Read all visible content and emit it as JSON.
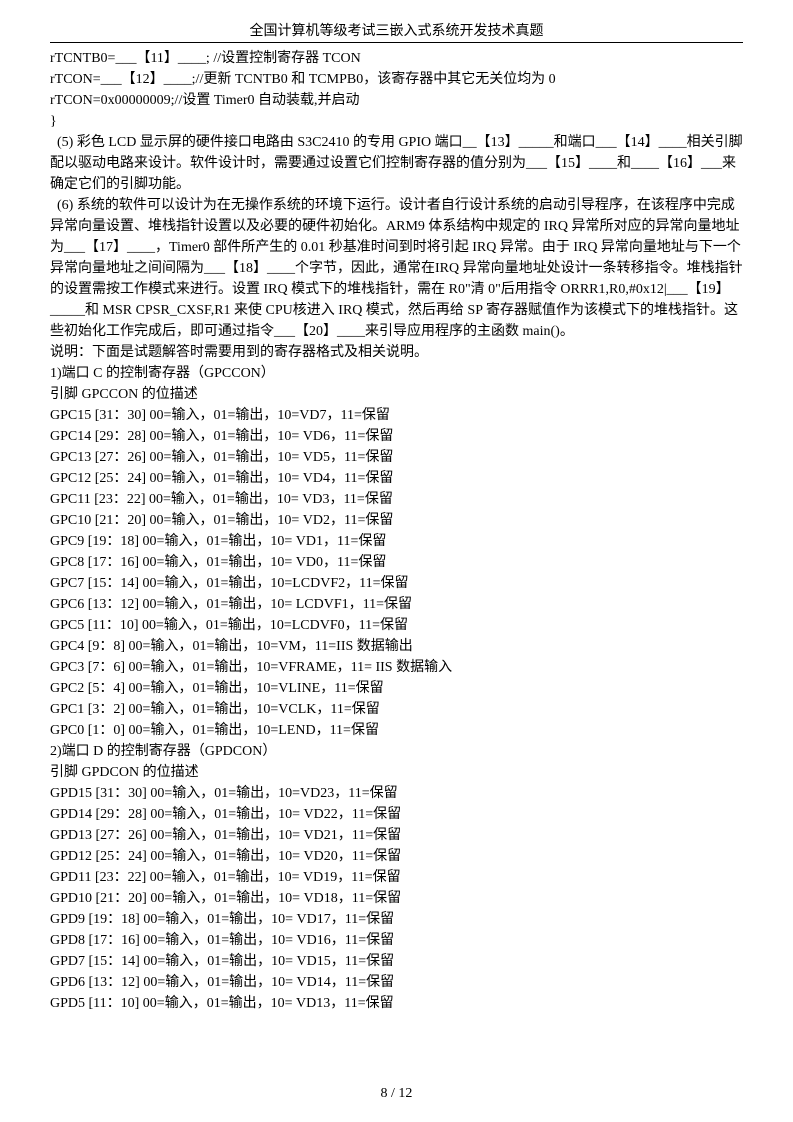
{
  "header": {
    "title": "全国计算机等级考试三嵌入式系统开发技术真题"
  },
  "codeLines": [
    "rTCNTB0=___【11】____; //设置控制寄存器 TCON",
    "rTCON=___【12】____;//更新 TCNTB0 和 TCMPB0，该寄存器中其它无关位均为 0",
    "rTCON=0x00000009;//设置 Timer0 自动装载,并启动",
    "}"
  ],
  "paragraphs": [
    "  (5) 彩色 LCD 显示屏的硬件接口电路由 S3C2410 的专用 GPIO 端口__【13】_____和端口___【14】____相关引脚配以驱动电路来设计。软件设计时，需要通过设置它们控制寄存器的值分别为___【15】____和____【16】___来确定它们的引脚功能。",
    "  (6) 系统的软件可以设计为在无操作系统的环境下运行。设计者自行设计系统的启动引导程序，在该程序中完成异常向量设置、堆栈指针设置以及必要的硬件初始化。ARM9 体系结构中规定的 IRQ 异常所对应的异常向量地址为___【17】____，Timer0 部件所产生的 0.01 秒基准时间到时将引起 IRQ 异常。由于 IRQ 异常向量地址与下一个异常向量地址之间间隔为___【18】____个字节，因此，通常在IRQ 异常向量地址处设计一条转移指令。堆栈指针的设置需按工作模式来进行。设置 IRQ 模式下的堆栈指针，需在 R0\"清 0\"后用指令 ORRR1,R0,#0x12|___【19】_____和 MSR CPSR_CXSF,R1 来使 CPU核进入 IRQ 模式，然后再给 SP 寄存器赋值作为该模式下的堆栈指针。这些初始化工作完成后，即可通过指令___【20】____来引导应用程序的主函数 main()。",
    "说明：下面是试题解答时需要用到的寄存器格式及相关说明。",
    "1)端口 C 的控制寄存器（GPCCON）",
    "引脚 GPCCON 的位描述"
  ],
  "gpcLines": [
    "GPC15 [31：30] 00=输入，01=输出，10=VD7，11=保留",
    "GPC14 [29：28] 00=输入，01=输出，10= VD6，11=保留",
    "GPC13 [27：26] 00=输入，01=输出，10= VD5，11=保留",
    "GPC12 [25：24] 00=输入，01=输出，10= VD4，11=保留",
    "GPC11 [23：22] 00=输入，01=输出，10= VD3，11=保留",
    "GPC10 [21：20] 00=输入，01=输出，10= VD2，11=保留",
    "GPC9 [19：18] 00=输入，01=输出，10= VD1，11=保留",
    "GPC8 [17：16] 00=输入，01=输出，10= VD0，11=保留",
    "GPC7 [15：14] 00=输入，01=输出，10=LCDVF2，11=保留",
    "GPC6 [13：12] 00=输入，01=输出，10= LCDVF1，11=保留",
    "GPC5 [11：10] 00=输入，01=输出，10=LCDVF0，11=保留",
    "GPC4 [9：8] 00=输入，01=输出，10=VM，11=IIS 数据输出",
    "GPC3 [7：6] 00=输入，01=输出，10=VFRAME，11= IIS 数据输入",
    "GPC2 [5：4] 00=输入，01=输出，10=VLINE，11=保留",
    "GPC1 [3：2] 00=输入，01=输出，10=VCLK，11=保留",
    "GPC0 [1：0] 00=输入，01=输出，10=LEND，11=保留"
  ],
  "gpdHeader": [
    "2)端口 D 的控制寄存器（GPDCON）",
    "引脚 GPDCON 的位描述"
  ],
  "gpdLines": [
    "GPD15 [31：30] 00=输入，01=输出，10=VD23，11=保留",
    "GPD14 [29：28] 00=输入，01=输出，10= VD22，11=保留",
    "GPD13 [27：26] 00=输入，01=输出，10= VD21，11=保留",
    "GPD12 [25：24] 00=输入，01=输出，10= VD20，11=保留",
    "GPD11 [23：22] 00=输入，01=输出，10= VD19，11=保留",
    "GPD10 [21：20] 00=输入，01=输出，10= VD18，11=保留",
    "GPD9 [19：18] 00=输入，01=输出，10= VD17，11=保留",
    "GPD8 [17：16] 00=输入，01=输出，10= VD16，11=保留",
    "GPD7 [15：14] 00=输入，01=输出，10= VD15，11=保留",
    "GPD6 [13：12] 00=输入，01=输出，10= VD14，11=保留",
    "GPD5 [11：10] 00=输入，01=输出，10= VD13，11=保留"
  ],
  "footer": {
    "pageNumber": "8 / 12"
  }
}
